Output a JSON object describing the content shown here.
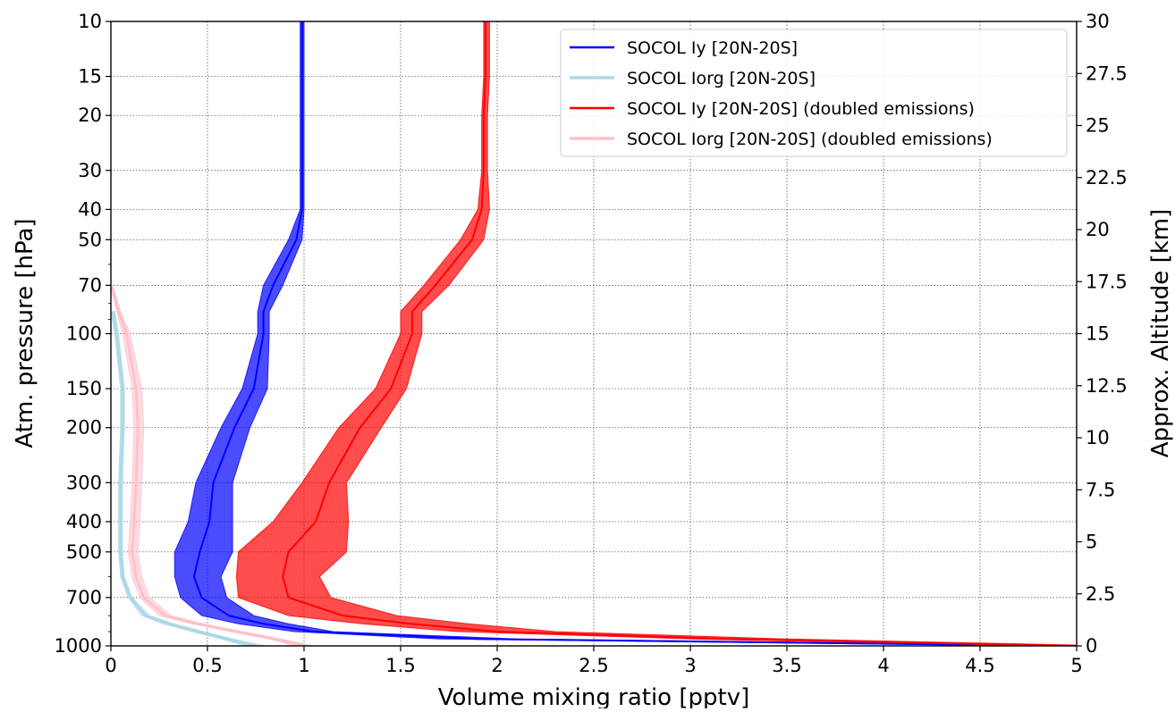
{
  "chart_data": {
    "type": "line",
    "xlabel": "Volume mixing ratio [pptv]",
    "ylabel": "Atm. pressure [hPa]",
    "y2label": "Approx. Altitude [km]",
    "xlim": [
      0,
      5
    ],
    "ylim": [
      1000,
      10
    ],
    "yscale": "log",
    "y2lim": [
      0,
      30
    ],
    "grid": true,
    "legend_position": "top-right",
    "x_ticks": [
      "0",
      "0.5",
      "1",
      "1.5",
      "2",
      "2.5",
      "3",
      "3.5",
      "4",
      "4.5",
      "5"
    ],
    "y_ticks": [
      {
        "value": 10,
        "label": "10"
      },
      {
        "value": 15,
        "label": "15"
      },
      {
        "value": 20,
        "label": "20"
      },
      {
        "value": 30,
        "label": "30"
      },
      {
        "value": 40,
        "label": "40"
      },
      {
        "value": 50,
        "label": "50"
      },
      {
        "value": 70,
        "label": "70"
      },
      {
        "value": 100,
        "label": "100"
      },
      {
        "value": 150,
        "label": "150"
      },
      {
        "value": 200,
        "label": "200"
      },
      {
        "value": 300,
        "label": "300"
      },
      {
        "value": 400,
        "label": "400"
      },
      {
        "value": 500,
        "label": "500"
      },
      {
        "value": 700,
        "label": "700"
      },
      {
        "value": 1000,
        "label": "1000"
      }
    ],
    "y2_ticks": [
      "0",
      "2.5",
      "5",
      "7.5",
      "10",
      "12.5",
      "15",
      "17.5",
      "20",
      "22.5",
      "25",
      "27.5",
      "30"
    ],
    "pressure_levels": [
      10,
      15,
      20,
      30,
      40,
      50,
      70,
      85,
      100,
      150,
      200,
      300,
      400,
      500,
      600,
      700,
      800,
      850,
      900,
      950,
      1000
    ],
    "series": [
      {
        "name": "SOCOL Iy [20N-20S]",
        "color": "#0000ff",
        "band_color": "#0000ff",
        "line_width": 2,
        "mean": [
          0.99,
          0.99,
          0.99,
          0.99,
          0.99,
          0.96,
          0.84,
          0.79,
          0.79,
          0.74,
          0.64,
          0.53,
          0.51,
          0.46,
          0.43,
          0.47,
          0.61,
          0.79,
          1.05,
          1.9,
          5.0
        ],
        "lower": [
          0.98,
          0.98,
          0.98,
          0.98,
          0.98,
          0.92,
          0.79,
          0.76,
          0.76,
          0.68,
          0.57,
          0.44,
          0.4,
          0.33,
          0.33,
          0.36,
          0.47,
          0.66,
          0.95,
          1.7,
          4.8
        ],
        "upper": [
          1.0,
          1.0,
          1.0,
          1.0,
          1.0,
          0.99,
          0.89,
          0.82,
          0.82,
          0.81,
          0.72,
          0.63,
          0.63,
          0.63,
          0.57,
          0.6,
          0.74,
          0.92,
          1.15,
          2.1,
          5.2
        ]
      },
      {
        "name": "SOCOL Iorg [20N-20S]",
        "color": "#add8e6",
        "band_color": "#add8e6",
        "line_width": 3,
        "mean": [
          null,
          null,
          null,
          null,
          null,
          null,
          null,
          0.01,
          0.03,
          0.06,
          0.06,
          0.05,
          0.05,
          0.05,
          0.06,
          0.1,
          0.18,
          0.3,
          0.45,
          0.6,
          0.75
        ],
        "lower": [
          null,
          null,
          null,
          null,
          null,
          null,
          null,
          0.0,
          0.02,
          0.05,
          0.05,
          0.04,
          0.04,
          0.04,
          0.05,
          0.09,
          0.16,
          0.27,
          0.42,
          0.57,
          0.7
        ],
        "upper": [
          null,
          null,
          null,
          null,
          null,
          null,
          null,
          0.02,
          0.04,
          0.07,
          0.07,
          0.06,
          0.06,
          0.06,
          0.07,
          0.11,
          0.2,
          0.33,
          0.48,
          0.63,
          0.8
        ]
      },
      {
        "name": "SOCOL Iy [20N-20S] (doubled emissions)",
        "color": "#ff0000",
        "band_color": "#ff0000",
        "line_width": 2,
        "mean": [
          1.94,
          1.94,
          1.93,
          1.93,
          1.92,
          1.87,
          1.68,
          1.56,
          1.56,
          1.45,
          1.29,
          1.13,
          1.06,
          0.92,
          0.89,
          0.92,
          1.2,
          1.55,
          2.0,
          3.2,
          5.0
        ],
        "lower": [
          1.93,
          1.93,
          1.92,
          1.92,
          1.9,
          1.81,
          1.62,
          1.5,
          1.5,
          1.37,
          1.18,
          0.99,
          0.84,
          0.66,
          0.65,
          0.66,
          0.92,
          1.3,
          1.8,
          3.0,
          4.8
        ],
        "upper": [
          1.96,
          1.96,
          1.95,
          1.95,
          1.96,
          1.93,
          1.75,
          1.61,
          1.61,
          1.53,
          1.4,
          1.22,
          1.23,
          1.22,
          1.08,
          1.14,
          1.48,
          1.85,
          2.3,
          3.5,
          5.2
        ]
      },
      {
        "name": "SOCOL Iorg [20N-20S] (doubled emissions)",
        "color": "#ffc0cb",
        "band_color": "#ffc0cb",
        "line_width": 3,
        "mean": [
          null,
          null,
          null,
          null,
          null,
          null,
          0.0,
          0.04,
          0.08,
          0.13,
          0.14,
          0.13,
          0.12,
          0.11,
          0.13,
          0.17,
          0.28,
          0.45,
          0.65,
          0.85,
          1.0
        ],
        "lower": [
          null,
          null,
          null,
          null,
          null,
          null,
          0.0,
          0.03,
          0.06,
          0.11,
          0.12,
          0.11,
          0.1,
          0.09,
          0.11,
          0.15,
          0.25,
          0.42,
          0.62,
          0.82,
          0.95
        ],
        "upper": [
          null,
          null,
          null,
          null,
          null,
          null,
          0.01,
          0.05,
          0.1,
          0.16,
          0.17,
          0.16,
          0.15,
          0.14,
          0.16,
          0.2,
          0.31,
          0.48,
          0.68,
          0.88,
          1.05
        ]
      }
    ]
  }
}
